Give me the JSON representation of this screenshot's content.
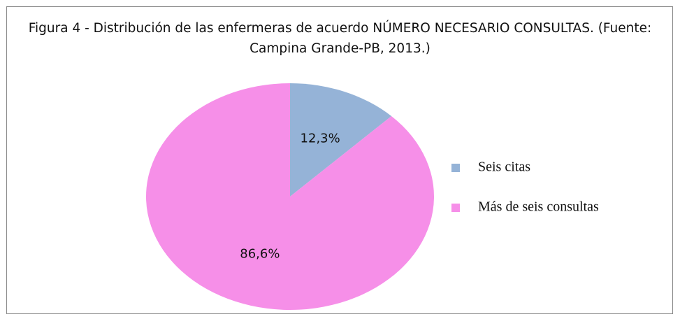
{
  "chart_data": {
    "type": "pie",
    "title": "Figura 4 - Distribución de las enfermeras de acuerdo NÚMERO NECESARIO CONSULTAS. (Fuente: Campina Grande-PB, 2013.)",
    "categories": [
      "Seis citas",
      "Más de seis consultas"
    ],
    "values": [
      12.3,
      86.6
    ],
    "value_labels": [
      "12,3%",
      "86,6%"
    ],
    "colors": [
      "#95b3d7",
      "#f68fe8"
    ],
    "legend": "right"
  }
}
